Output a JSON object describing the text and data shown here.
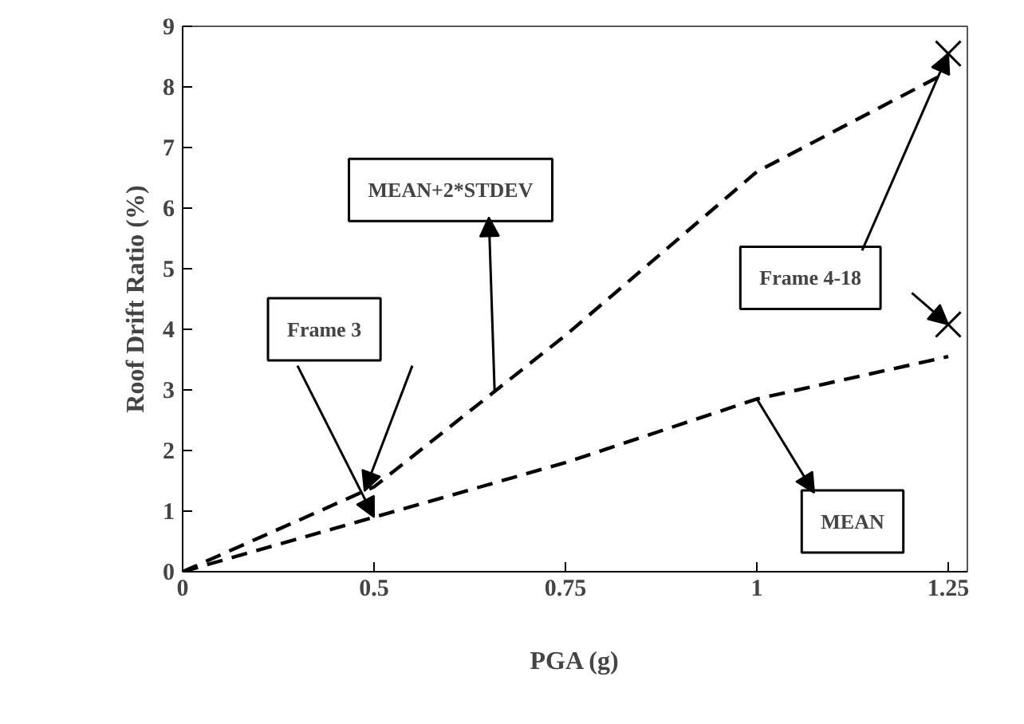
{
  "chart_data": {
    "type": "line",
    "xlabel": "PGA (g)",
    "ylabel": "Roof Drift Ratio (%)",
    "categories": [
      "0",
      "0.5",
      "0.75",
      "1",
      "1.25"
    ],
    "series": [
      {
        "color": "#000000",
        "values": [
          0,
          1.4,
          3.9,
          6.6,
          8.25
        ]
      },
      {
        "color": "#000000",
        "values": [
          0,
          0.9,
          1.8,
          2.85,
          3.55
        ]
      },
      {
        "type": "scatter",
        "marker": "cross",
        "color": "#000000",
        "x": [
          "1.25",
          "1.25"
        ],
        "values": [
          8.55,
          4.08
        ]
      }
    ],
    "line_style": "dashed",
    "marker": "none",
    "ylim": [
      0,
      9
    ],
    "yticks": [
      0,
      1,
      2,
      3,
      4,
      5,
      6,
      7,
      8,
      9
    ],
    "grid": false,
    "annotations": [
      "MEAN+2*STDEV",
      {
        "text": "Frame 3",
        "x": "0.5",
        "y": 0.9
      },
      {
        "text": "Frame 4-18",
        "x": "1.25",
        "y": 8.55
      },
      {
        "text": "MEAN",
        "x": "1",
        "y": 2.85
      }
    ]
  }
}
